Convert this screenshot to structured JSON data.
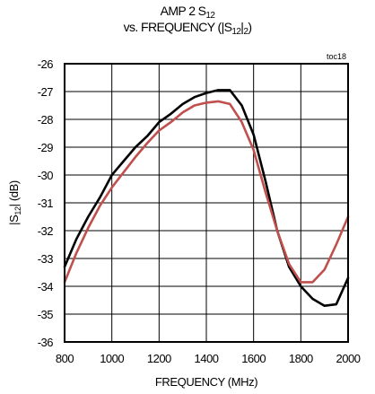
{
  "chart_data": {
    "type": "line",
    "title": {
      "line1_pre": "AMP 2 S",
      "line1_sub": "12",
      "line2_pre": "vs. FREQUENCY (|S",
      "line2_sub1": "12",
      "line2_mid": "|",
      "line2_sub2": "2",
      "line2_post": ")"
    },
    "corner_tag": "toc18",
    "xlabel": "FREQUENCY (MHz)",
    "ylabel": {
      "pre": "|S",
      "sub": "12",
      "post": "| (dB)"
    },
    "xlim": [
      800,
      2000
    ],
    "ylim": [
      -36,
      -26
    ],
    "x_ticks": [
      "800",
      "1000",
      "1200",
      "1400",
      "1600",
      "1800",
      "2000"
    ],
    "y_ticks": [
      "-26",
      "-27",
      "-28",
      "-29",
      "-30",
      "-31",
      "-32",
      "-33",
      "-34",
      "-35",
      "-36"
    ],
    "grid": true,
    "series": [
      {
        "color": "#000000",
        "points": [
          [
            800,
            -33.3
          ],
          [
            850,
            -32.3
          ],
          [
            900,
            -31.5
          ],
          [
            950,
            -30.8
          ],
          [
            1000,
            -30.0
          ],
          [
            1050,
            -29.5
          ],
          [
            1100,
            -29.0
          ],
          [
            1150,
            -28.6
          ],
          [
            1200,
            -28.1
          ],
          [
            1250,
            -27.8
          ],
          [
            1300,
            -27.45
          ],
          [
            1350,
            -27.2
          ],
          [
            1400,
            -27.05
          ],
          [
            1450,
            -26.95
          ],
          [
            1500,
            -26.95
          ],
          [
            1550,
            -27.5
          ],
          [
            1600,
            -28.55
          ],
          [
            1650,
            -30.2
          ],
          [
            1700,
            -32.0
          ],
          [
            1750,
            -33.3
          ],
          [
            1800,
            -34.0
          ],
          [
            1850,
            -34.45
          ],
          [
            1900,
            -34.7
          ],
          [
            1950,
            -34.65
          ],
          [
            2000,
            -33.7
          ]
        ]
      },
      {
        "color": "#c0504d",
        "points": [
          [
            800,
            -33.85
          ],
          [
            850,
            -32.8
          ],
          [
            900,
            -31.9
          ],
          [
            950,
            -31.1
          ],
          [
            1000,
            -30.45
          ],
          [
            1050,
            -29.9
          ],
          [
            1100,
            -29.35
          ],
          [
            1150,
            -28.85
          ],
          [
            1200,
            -28.4
          ],
          [
            1250,
            -28.1
          ],
          [
            1300,
            -27.75
          ],
          [
            1350,
            -27.5
          ],
          [
            1400,
            -27.4
          ],
          [
            1450,
            -27.35
          ],
          [
            1500,
            -27.45
          ],
          [
            1550,
            -28.1
          ],
          [
            1600,
            -29.1
          ],
          [
            1650,
            -30.6
          ],
          [
            1700,
            -32.0
          ],
          [
            1750,
            -33.2
          ],
          [
            1800,
            -33.85
          ],
          [
            1850,
            -33.85
          ],
          [
            1900,
            -33.4
          ],
          [
            1950,
            -32.5
          ],
          [
            2000,
            -31.5
          ]
        ]
      }
    ]
  }
}
